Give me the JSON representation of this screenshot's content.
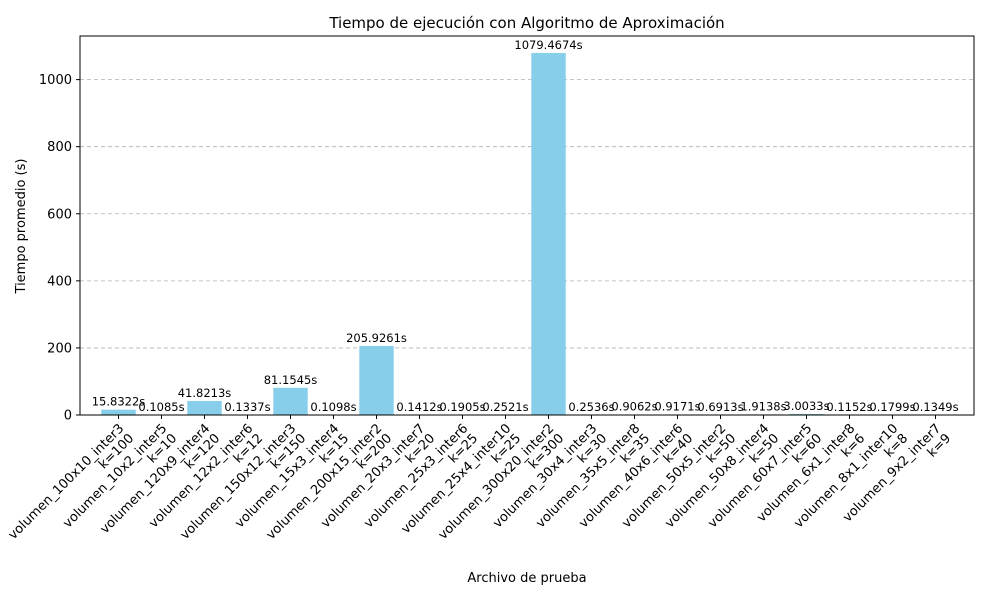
{
  "chart_data": {
    "type": "bar",
    "title": "Tiempo de ejecución con Algoritmo de Aproximación",
    "xlabel": "Archivo de prueba",
    "ylabel": "Tiempo promedio (s)",
    "ylim": [
      0,
      1130
    ],
    "yticks": [
      0,
      200,
      400,
      600,
      800,
      1000
    ],
    "grid": "y",
    "bar_color": "#87ceeb",
    "categories": [
      "volumen_100x10_inter3\nk=100",
      "volumen_10x2_inter5\nk=10",
      "volumen_120x9_inter4\nk=120",
      "volumen_12x2_inter6\nk=12",
      "volumen_150x12_inter3\nk=150",
      "volumen_15x3_inter4\nk=15",
      "volumen_200x15_inter2\nk=200",
      "volumen_20x3_inter7\nk=20",
      "volumen_25x3_inter6\nk=25",
      "volumen_25x4_inter10\nk=25",
      "volumen_300x20_inter2\nk=300",
      "volumen_30x4_inter3\nk=30",
      "volumen_35x5_inter8\nk=35",
      "volumen_40x6_inter6\nk=40",
      "volumen_50x5_inter2\nk=50",
      "volumen_50x8_inter4\nk=50",
      "volumen_60x7_inter5\nk=60",
      "volumen_6x1_inter8\nk=6",
      "volumen_8x1_inter10\nk=8",
      "volumen_9x2_inter7\nk=9"
    ],
    "values": [
      15.8322,
      0.1085,
      41.8213,
      0.1337,
      81.1545,
      0.1098,
      205.9261,
      0.1412,
      0.1905,
      0.2521,
      1079.4674,
      0.2536,
      0.9062,
      0.9171,
      0.6913,
      1.9138,
      3.0033,
      0.1152,
      0.1799,
      0.1349
    ],
    "labels": [
      "15.8322s",
      "0.1085s",
      "41.8213s",
      "0.1337s",
      "81.1545s",
      "0.1098s",
      "205.9261s",
      "0.1412s",
      "0.1905s",
      "0.2521s",
      "1079.4674s",
      "0.2536s",
      "0.9062s",
      "0.9171s",
      "0.6913s",
      "1.9138s",
      "3.0033s",
      "0.1152s",
      "0.1799s",
      "0.1349s"
    ]
  }
}
